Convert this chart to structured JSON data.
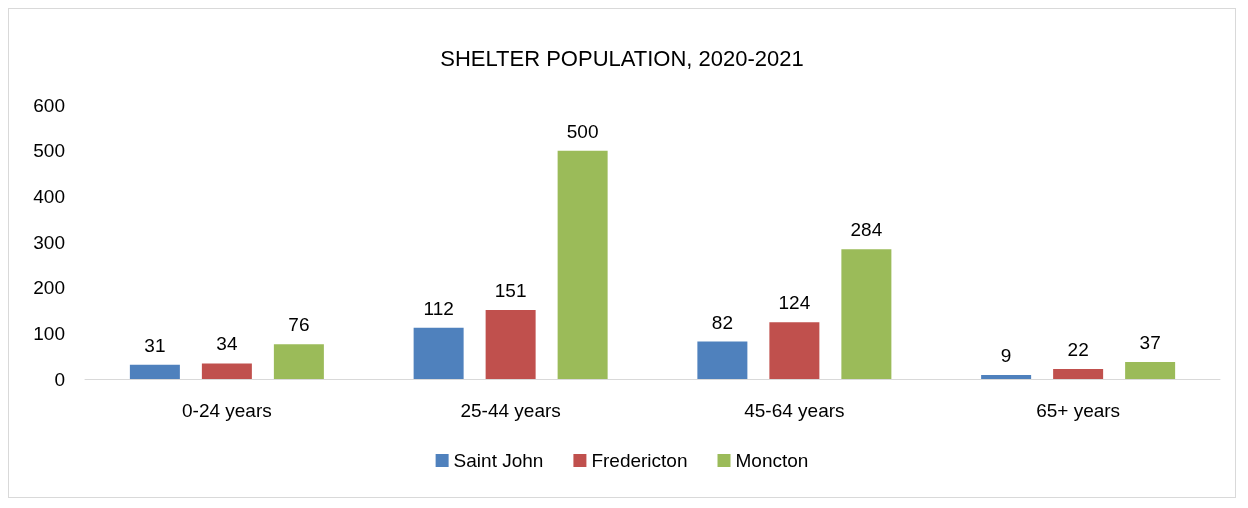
{
  "chart_data": {
    "type": "bar",
    "title": "SHELTER POPULATION, 2020-2021",
    "categories": [
      "0-24 years",
      "25-44 years",
      "45-64 years",
      "65+ years"
    ],
    "series": [
      {
        "name": "Saint John",
        "color": "#4f81bd",
        "values": [
          31,
          112,
          82,
          9
        ]
      },
      {
        "name": "Fredericton",
        "color": "#c0504d",
        "values": [
          34,
          151,
          124,
          22
        ]
      },
      {
        "name": "Moncton",
        "color": "#9bbb59",
        "values": [
          76,
          500,
          284,
          37
        ]
      }
    ],
    "ylim": [
      0,
      600
    ],
    "yticks": [
      0,
      100,
      200,
      300,
      400,
      500,
      600
    ],
    "grid": false,
    "legend": "bottom",
    "data_labels": true
  }
}
